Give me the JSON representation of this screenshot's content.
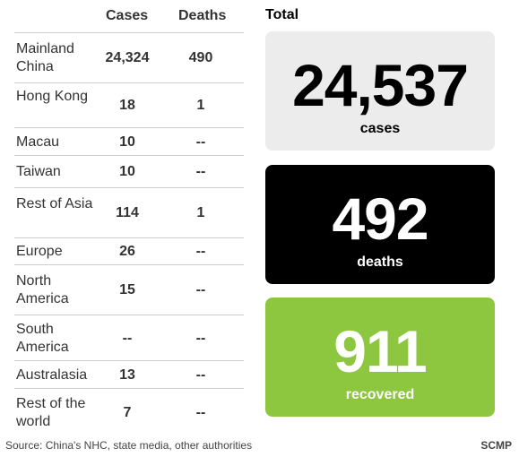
{
  "chart_data": {
    "type": "table",
    "columns": [
      "Cases",
      "Deaths"
    ],
    "rows": [
      {
        "region": "Mainland China",
        "cases": "24,324",
        "deaths": "490"
      },
      {
        "region": "Hong Kong",
        "cases": "18",
        "deaths": "1"
      },
      {
        "region": "Macau",
        "cases": "10",
        "deaths": "--"
      },
      {
        "region": "Taiwan",
        "cases": "10",
        "deaths": "--"
      },
      {
        "region": "Rest of Asia",
        "cases": "114",
        "deaths": "1"
      },
      {
        "region": "Europe",
        "cases": "26",
        "deaths": "--"
      },
      {
        "region": "North America",
        "cases": "15",
        "deaths": "--"
      },
      {
        "region": "South America",
        "cases": "--",
        "deaths": "--"
      },
      {
        "region": "Australasia",
        "cases": "13",
        "deaths": "--"
      },
      {
        "region": "Rest of the world",
        "cases": "7",
        "deaths": "--"
      }
    ]
  },
  "totals": {
    "title": "Total",
    "cases": {
      "value": "24,537",
      "label": "cases",
      "color": "#ececec"
    },
    "deaths": {
      "value": "492",
      "label": "deaths",
      "color": "#000000"
    },
    "recovered": {
      "value": "911",
      "label": "recovered",
      "color": "#8dc63f"
    }
  },
  "footer": {
    "source": "Source: China's NHC, state media, other authorities",
    "brand": "SCMP"
  }
}
